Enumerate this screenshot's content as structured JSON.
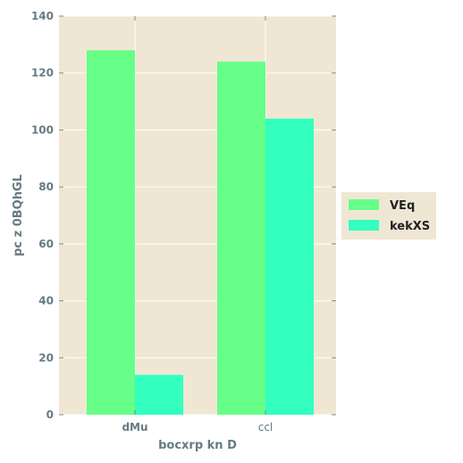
{
  "chart_data": {
    "type": "bar",
    "categories": [
      "dMu",
      "ccl"
    ],
    "series": [
      {
        "name": "VEq",
        "values": [
          128,
          124
        ],
        "color": "#66ff88"
      },
      {
        "name": "kekXS",
        "values": [
          14,
          104
        ],
        "color": "#33ffbf"
      }
    ],
    "xlabel": "bocxrp kn D",
    "ylabel": "pc  z 0BQhGL",
    "ylim": [
      0,
      140
    ],
    "yticks": [
      0,
      20,
      40,
      60,
      80,
      100,
      120,
      140
    ],
    "grid": true,
    "legend_position": "right",
    "background_color": "#efe7d4",
    "grid_color": "#ffffff"
  }
}
